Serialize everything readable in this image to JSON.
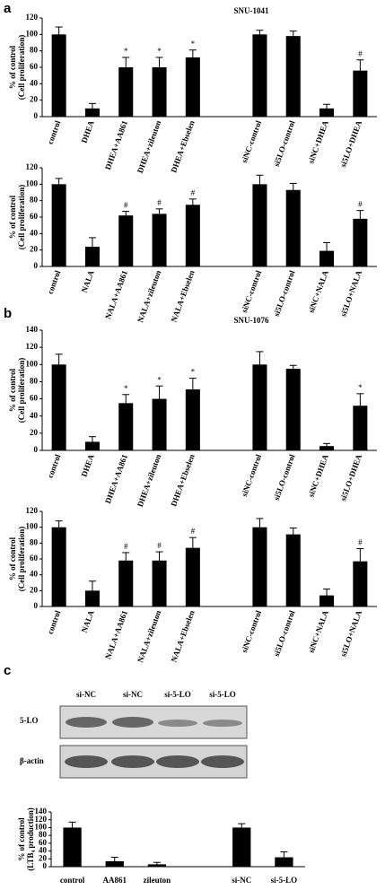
{
  "panel_labels": [
    "a",
    "b",
    "c"
  ],
  "blot": {
    "lanes": [
      "si-NC",
      "si-NC",
      "si-5-LO",
      "si-5-LO"
    ],
    "rows": [
      "5-LO",
      "β-actin"
    ]
  },
  "chart_data": [
    {
      "type": "bar",
      "title": "SNU-1041",
      "ylabel": [
        "% of control",
        "(Cell proliferation)"
      ],
      "categories": [
        "control",
        "DHEA",
        "DHEA+AA861",
        "DHEA+zileuton",
        "DHEA+Ebselen",
        null,
        "siNC-control",
        "si5LO-control",
        "siNC+DHEA",
        "si5LO+DHEA"
      ],
      "values": [
        100,
        10,
        60,
        60,
        72,
        null,
        100,
        98,
        10,
        56
      ],
      "errors": [
        9,
        6,
        12,
        12,
        9,
        null,
        5,
        6,
        5,
        13
      ],
      "markers": [
        null,
        null,
        "*",
        "*",
        "*",
        null,
        null,
        null,
        null,
        "#"
      ],
      "color": "#000000",
      "ylim": [
        0,
        120
      ],
      "yticks": [
        0,
        20,
        40,
        60,
        80,
        100,
        120
      ]
    },
    {
      "type": "bar",
      "ylabel": [
        "% of control",
        "(Cell proliferation)"
      ],
      "categories": [
        "control",
        "NALA",
        "NALA+AA861",
        "NALA+zileuton",
        "NALA+Ebselen",
        null,
        "siNC-control",
        "si5LO-control",
        "siNC+NALA",
        "si5LO+NALA"
      ],
      "values": [
        100,
        24,
        62,
        64,
        75,
        null,
        100,
        93,
        19,
        58
      ],
      "errors": [
        7,
        11,
        5,
        6,
        7,
        null,
        11,
        8,
        10,
        10
      ],
      "markers": [
        null,
        null,
        "#",
        "#",
        "#",
        null,
        null,
        null,
        null,
        "#"
      ],
      "color": "#000000",
      "ylim": [
        0,
        120
      ],
      "yticks": [
        0,
        20,
        40,
        60,
        80,
        100,
        120
      ]
    },
    {
      "type": "bar",
      "title": "SNU-1076",
      "ylabel": [
        "% of control",
        "(Cell proliferation)"
      ],
      "categories": [
        "control",
        "DHEA",
        "DHEA+AA861",
        "DHEA+zileuton",
        "DHEA+Ebselen",
        null,
        "siNC-control",
        "si5LO-control",
        "siNC+DHEA",
        "si5LO+DHEA"
      ],
      "values": [
        100,
        10,
        55,
        60,
        71,
        null,
        100,
        95,
        5,
        52
      ],
      "errors": [
        12,
        6,
        10,
        15,
        13,
        null,
        15,
        4,
        3,
        14
      ],
      "markers": [
        null,
        null,
        "*",
        "*",
        "*",
        null,
        null,
        null,
        null,
        "*"
      ],
      "color": "#000000",
      "ylim": [
        0,
        140
      ],
      "yticks": [
        0,
        20,
        40,
        60,
        80,
        100,
        120,
        140
      ]
    },
    {
      "type": "bar",
      "ylabel": [
        "% of control",
        "(Cell proliferation)"
      ],
      "categories": [
        "control",
        "NALA",
        "NALA+AA861",
        "NALA+zileuton",
        "NALA+Ebselen",
        null,
        "siNC-control",
        "si5LO-control",
        "siNC+NALA",
        "si5LO+NALA"
      ],
      "values": [
        100,
        20,
        58,
        58,
        74,
        null,
        100,
        91,
        14,
        57
      ],
      "errors": [
        8,
        12,
        10,
        11,
        13,
        null,
        11,
        8,
        8,
        16
      ],
      "markers": [
        null,
        null,
        "#",
        "#",
        "#",
        null,
        null,
        null,
        null,
        "#"
      ],
      "color": "#000000",
      "ylim": [
        0,
        120
      ],
      "yticks": [
        0,
        20,
        40,
        60,
        80,
        100,
        120
      ]
    },
    {
      "type": "bar",
      "ylabel": [
        "% of control",
        "(LTB₄ production)"
      ],
      "categories": [
        "control",
        "AA861",
        "zileuton",
        null,
        "si-NC",
        "si-5-LO"
      ],
      "values": [
        100,
        14,
        6,
        null,
        100,
        24
      ],
      "errors": [
        14,
        10,
        5,
        null,
        10,
        14
      ],
      "color": "#000000",
      "ylim": [
        0,
        140
      ],
      "yticks": [
        0,
        20,
        40,
        60,
        80,
        100,
        120,
        140
      ]
    }
  ]
}
